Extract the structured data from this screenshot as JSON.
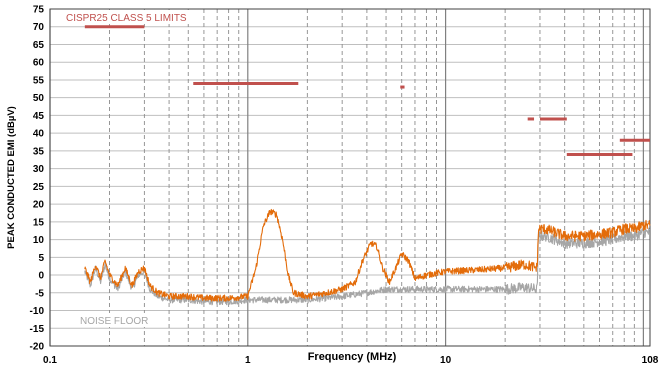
{
  "chart_data": {
    "type": "line",
    "title": "",
    "xlabel": "Frequency (MHz)",
    "ylabel": "PEAK CONDUCTED EMI (dBµV)",
    "x_scale": "log",
    "xlim": [
      0.1,
      108
    ],
    "ylim": [
      -20,
      75
    ],
    "x_tick_labels": [
      {
        "value": 0.1,
        "label": "0.1"
      },
      {
        "value": 1,
        "label": "1"
      },
      {
        "value": 10,
        "label": "10"
      },
      {
        "value": 108,
        "label": "108"
      }
    ],
    "y_ticks": [
      -20,
      -15,
      -10,
      -5,
      0,
      5,
      10,
      15,
      20,
      25,
      30,
      35,
      40,
      45,
      50,
      55,
      60,
      65,
      70,
      75
    ],
    "grid": true,
    "annotations": [
      {
        "text": "CISPR25 CLASS 5 LIMITS",
        "color": "#c0504d"
      },
      {
        "text": "NOISE FLOOR",
        "color": "#a6a6a6"
      }
    ],
    "limits": {
      "color": "#c0504d",
      "segments": [
        {
          "x": [
            0.15,
            0.3
          ],
          "y": 70
        },
        {
          "x": [
            0.53,
            1.8
          ],
          "y": 54
        },
        {
          "x": [
            5.9,
            6.2
          ],
          "y": 53
        },
        {
          "x": [
            26,
            28
          ],
          "y": 44
        },
        {
          "x": [
            30,
            41
          ],
          "y": 44
        },
        {
          "x": [
            41,
            88
          ],
          "y": 34
        },
        {
          "x": [
            76,
            108
          ],
          "y": 38
        }
      ]
    },
    "series": [
      {
        "color": "#a6a6a6",
        "points": [
          [
            0.15,
            1
          ],
          [
            0.16,
            -3
          ],
          [
            0.17,
            2
          ],
          [
            0.18,
            -2
          ],
          [
            0.19,
            3
          ],
          [
            0.2,
            -1
          ],
          [
            0.22,
            -4
          ],
          [
            0.24,
            1
          ],
          [
            0.26,
            -4
          ],
          [
            0.28,
            0
          ],
          [
            0.3,
            1
          ],
          [
            0.32,
            -4
          ],
          [
            0.35,
            -6
          ],
          [
            0.4,
            -7
          ],
          [
            0.5,
            -7
          ],
          [
            0.6,
            -7.5
          ],
          [
            0.8,
            -7.5
          ],
          [
            1.0,
            -7
          ],
          [
            1.2,
            -7
          ],
          [
            1.5,
            -7
          ],
          [
            2.0,
            -7
          ],
          [
            2.5,
            -6.5
          ],
          [
            3.0,
            -6
          ],
          [
            4.0,
            -5
          ],
          [
            5.0,
            -4
          ],
          [
            6.0,
            -4
          ],
          [
            8.0,
            -4
          ],
          [
            10,
            -4
          ],
          [
            15,
            -4
          ],
          [
            20,
            -4
          ],
          [
            25,
            -3.5
          ],
          [
            29,
            -4
          ],
          [
            29.5,
            11
          ],
          [
            32,
            11
          ],
          [
            40,
            9
          ],
          [
            50,
            9
          ],
          [
            60,
            9.5
          ],
          [
            70,
            10
          ],
          [
            80,
            11
          ],
          [
            90,
            11
          ],
          [
            100,
            12
          ],
          [
            108,
            12
          ]
        ]
      },
      {
        "color": "#e36c0a",
        "points": [
          [
            0.15,
            2
          ],
          [
            0.16,
            -2
          ],
          [
            0.17,
            3
          ],
          [
            0.18,
            -1
          ],
          [
            0.19,
            4
          ],
          [
            0.2,
            0
          ],
          [
            0.22,
            -3
          ],
          [
            0.24,
            2
          ],
          [
            0.26,
            -3
          ],
          [
            0.28,
            1
          ],
          [
            0.3,
            2
          ],
          [
            0.32,
            -3
          ],
          [
            0.35,
            -5
          ],
          [
            0.4,
            -6
          ],
          [
            0.5,
            -6
          ],
          [
            0.6,
            -6.5
          ],
          [
            0.8,
            -6.5
          ],
          [
            1.0,
            -6
          ],
          [
            1.1,
            2
          ],
          [
            1.2,
            14
          ],
          [
            1.3,
            18
          ],
          [
            1.4,
            17
          ],
          [
            1.5,
            10
          ],
          [
            1.6,
            0
          ],
          [
            1.7,
            -5
          ],
          [
            2.0,
            -6
          ],
          [
            2.5,
            -5
          ],
          [
            3.0,
            -4
          ],
          [
            3.5,
            -2
          ],
          [
            3.8,
            4
          ],
          [
            4.2,
            9
          ],
          [
            4.5,
            8
          ],
          [
            4.8,
            2
          ],
          [
            5.2,
            -2
          ],
          [
            5.6,
            2
          ],
          [
            6.0,
            6
          ],
          [
            6.5,
            4
          ],
          [
            7.0,
            -1
          ],
          [
            8.0,
            0
          ],
          [
            10,
            1
          ],
          [
            15,
            1.5
          ],
          [
            20,
            2
          ],
          [
            25,
            3
          ],
          [
            29,
            2
          ],
          [
            29.5,
            13
          ],
          [
            32,
            13
          ],
          [
            40,
            11
          ],
          [
            50,
            11
          ],
          [
            60,
            11.5
          ],
          [
            70,
            12
          ],
          [
            80,
            13
          ],
          [
            90,
            13
          ],
          [
            100,
            14
          ],
          [
            108,
            14
          ]
        ]
      }
    ]
  }
}
